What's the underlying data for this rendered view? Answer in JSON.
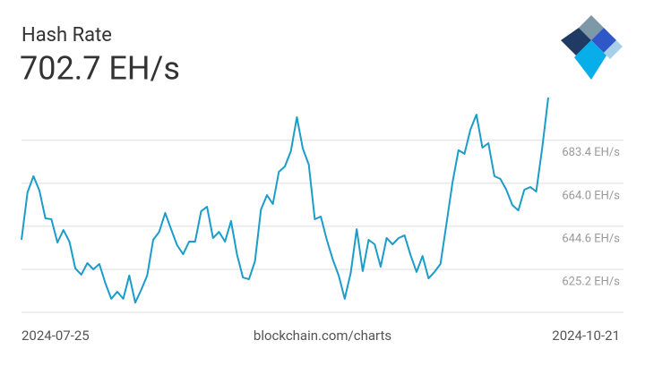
{
  "chart_data": {
    "type": "line",
    "title": "Hash Rate",
    "current_value": "702.7 EH/s",
    "source": "blockchain.com/charts",
    "x_start": "2024-07-25",
    "x_end": "2024-10-21",
    "color": "#1b9ccb",
    "grid": true,
    "ylim": [
      605.8,
      702.7
    ],
    "yticks": [
      {
        "value": 625.2,
        "label": "625.2 EH/s"
      },
      {
        "value": 644.6,
        "label": "644.6 EH/s"
      },
      {
        "value": 664.0,
        "label": "664.0 EH/s"
      },
      {
        "value": 683.4,
        "label": "683.4 EH/s"
      }
    ],
    "values": [
      638.5,
      659.9,
      667.2,
      660.7,
      648.2,
      647.8,
      637.3,
      642.9,
      637.7,
      625.6,
      622.8,
      628.0,
      625.2,
      627.6,
      619.1,
      611.9,
      615.1,
      611.9,
      622.4,
      610.2,
      615.9,
      622.4,
      638.5,
      642.1,
      650.6,
      643.3,
      636.1,
      632.0,
      637.7,
      637.7,
      651.4,
      653.4,
      639.3,
      642.1,
      637.7,
      647.0,
      632.0,
      621.5,
      620.7,
      628.8,
      652.2,
      658.7,
      654.7,
      669.2,
      671.6,
      678.5,
      693.8,
      679.7,
      672.4,
      647.8,
      649.0,
      638.5,
      629.6,
      622.4,
      611.9,
      623.6,
      643.3,
      624.4,
      638.5,
      636.5,
      626.4,
      639.3,
      636.5,
      639.3,
      640.5,
      631.6,
      624.0,
      631.2,
      621.1,
      624.0,
      627.6,
      645.8,
      664.3,
      678.9,
      677.3,
      688.2,
      695.0,
      680.1,
      682.1,
      667.2,
      666.0,
      661.1,
      654.2,
      651.8,
      661.1,
      662.3,
      660.3,
      680.1,
      702.7
    ]
  }
}
